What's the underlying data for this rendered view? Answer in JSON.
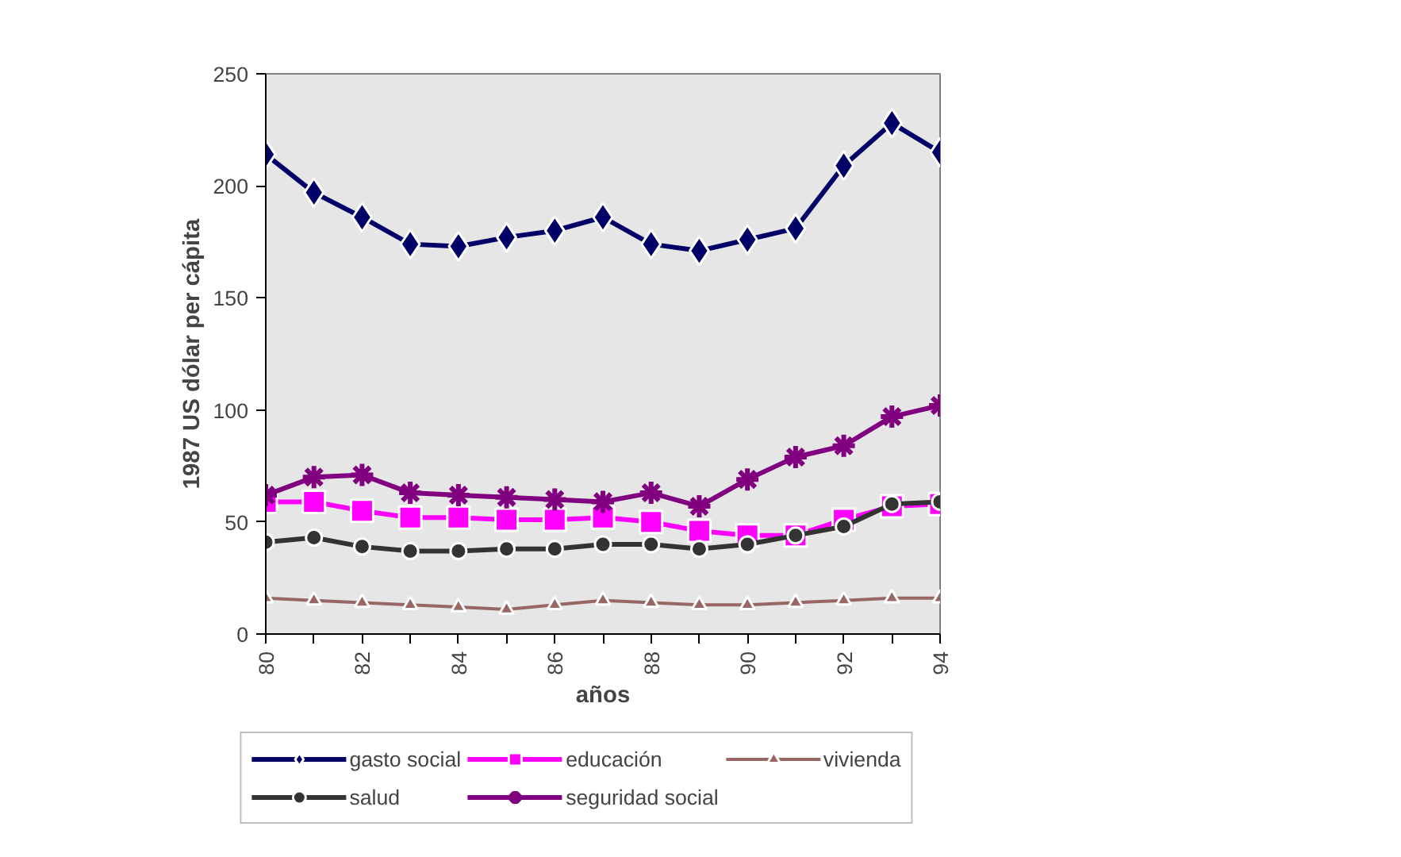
{
  "chart_data": {
    "type": "line",
    "xlabel": "años",
    "ylabel": "1987 US dólar per cápita",
    "x": [
      80,
      81,
      82,
      83,
      84,
      85,
      86,
      87,
      88,
      89,
      90,
      91,
      92,
      93,
      94
    ],
    "xlim": [
      80,
      94
    ],
    "xticks": [
      80,
      {
        "value": 81,
        "label": null
      },
      82,
      {
        "value": 83,
        "label": null
      },
      84,
      {
        "value": 85,
        "label": null
      },
      86,
      {
        "value": 87,
        "label": null
      },
      88,
      {
        "value": 89,
        "label": null
      },
      90,
      {
        "value": 91,
        "label": null
      },
      92,
      {
        "value": 93,
        "label": null
      },
      94
    ],
    "ylim": [
      0,
      250
    ],
    "yticks": [
      0,
      50,
      100,
      150,
      200,
      250
    ],
    "grid": false,
    "legend": "bottom",
    "series": [
      {
        "name": "gasto social",
        "color": "#000066",
        "marker": "diamond",
        "values": [
          214,
          197,
          186,
          174,
          173,
          177,
          180,
          186,
          174,
          171,
          176,
          181,
          209,
          228,
          215
        ]
      },
      {
        "name": "educación",
        "color": "#ff00ff",
        "marker": "square",
        "values": [
          59,
          59,
          55,
          52,
          52,
          51,
          51,
          52,
          50,
          46,
          44,
          44,
          51,
          57,
          58
        ]
      },
      {
        "name": "vivienda",
        "color": "#996666",
        "marker": "triangle",
        "values": [
          16,
          15,
          14,
          13,
          12,
          11,
          13,
          15,
          14,
          13,
          13,
          14,
          15,
          16,
          16
        ]
      },
      {
        "name": "salud",
        "color": "#333333",
        "marker": "circle",
        "values": [
          41,
          43,
          39,
          37,
          37,
          38,
          38,
          40,
          40,
          38,
          40,
          44,
          48,
          58,
          59
        ]
      },
      {
        "name": "seguridad social",
        "color": "#800080",
        "marker": "cross",
        "values": [
          62,
          70,
          71,
          63,
          62,
          61,
          60,
          59,
          63,
          57,
          69,
          79,
          84,
          97,
          102
        ]
      }
    ]
  }
}
